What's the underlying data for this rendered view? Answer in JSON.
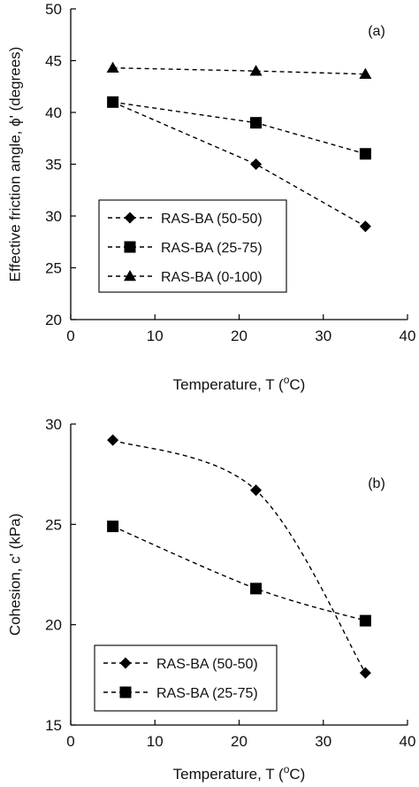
{
  "chart_data": [
    {
      "type": "line",
      "panel_label": "(a)",
      "xlabel_prefix": "Temperature, T (",
      "xlabel_sup": "o",
      "xlabel_suffix": "C)",
      "ylabel": "Effective friction angle, ϕ' (degrees)",
      "xlim": [
        0,
        40
      ],
      "ylim": [
        20,
        50
      ],
      "xticks": [
        "0",
        "10",
        "20",
        "30",
        "40"
      ],
      "yticks": [
        "20",
        "25",
        "30",
        "35",
        "40",
        "45",
        "50"
      ],
      "legend_position": "bottom-left",
      "smooth": false,
      "series": [
        {
          "name": "RAS-BA (50-50)",
          "marker": "diamond",
          "x": [
            5,
            22,
            35
          ],
          "y": [
            41,
            35,
            29
          ]
        },
        {
          "name": "RAS-BA (25-75)",
          "marker": "square",
          "x": [
            5,
            22,
            35
          ],
          "y": [
            41,
            39,
            36
          ]
        },
        {
          "name": "RAS-BA (0-100)",
          "marker": "triangle",
          "x": [
            5,
            22,
            35
          ],
          "y": [
            44.3,
            44,
            43.7
          ]
        }
      ]
    },
    {
      "type": "line",
      "panel_label": "(b)",
      "xlabel_prefix": "Temperature, T (",
      "xlabel_sup": "o",
      "xlabel_suffix": "C)",
      "ylabel": "Cohesion, c' (kPa)",
      "xlim": [
        0,
        40
      ],
      "ylim": [
        15,
        30
      ],
      "xticks": [
        "0",
        "10",
        "20",
        "30",
        "40"
      ],
      "yticks": [
        "15",
        "20",
        "25",
        "30"
      ],
      "legend_position": "bottom-left",
      "smooth": true,
      "series": [
        {
          "name": "RAS-BA (50-50)",
          "marker": "diamond",
          "x": [
            5,
            22,
            35
          ],
          "y": [
            29.2,
            26.7,
            17.6
          ]
        },
        {
          "name": "RAS-BA (25-75)",
          "marker": "square",
          "x": [
            5,
            22,
            35
          ],
          "y": [
            24.9,
            21.8,
            20.2
          ]
        }
      ]
    }
  ]
}
